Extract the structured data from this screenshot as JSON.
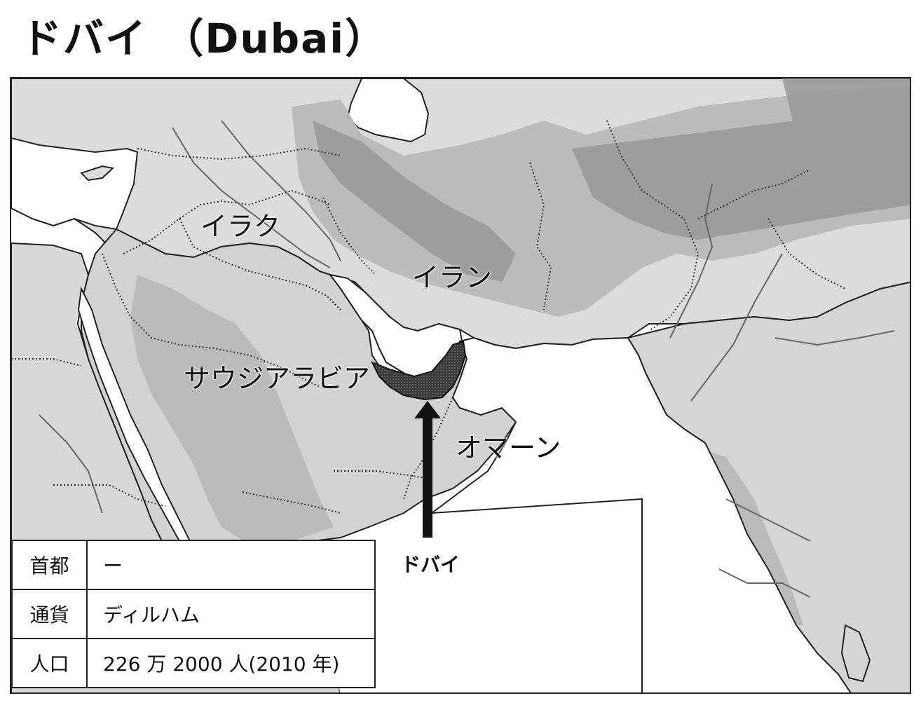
{
  "title": "ドバイ （Dubai）",
  "map": {
    "labels": {
      "iraq": "イラク",
      "iran": "イラン",
      "saudi": "サウジアラビア",
      "oman": "オマーン"
    },
    "highlight": {
      "name": "ドバイ",
      "fill": "#4a4a4a"
    },
    "colors": {
      "sea": "#ffffff",
      "land_low": "#e4e4e4",
      "land_mid": "#bdbdbd",
      "land_high": "#9a9a9a",
      "border": "#333333",
      "river": "#666666"
    }
  },
  "info": [
    {
      "key": "首都",
      "value": "ー"
    },
    {
      "key": "通貨",
      "value": "ディルハム"
    },
    {
      "key": "人口",
      "value": "226 万 2000 人(2010 年)"
    }
  ]
}
